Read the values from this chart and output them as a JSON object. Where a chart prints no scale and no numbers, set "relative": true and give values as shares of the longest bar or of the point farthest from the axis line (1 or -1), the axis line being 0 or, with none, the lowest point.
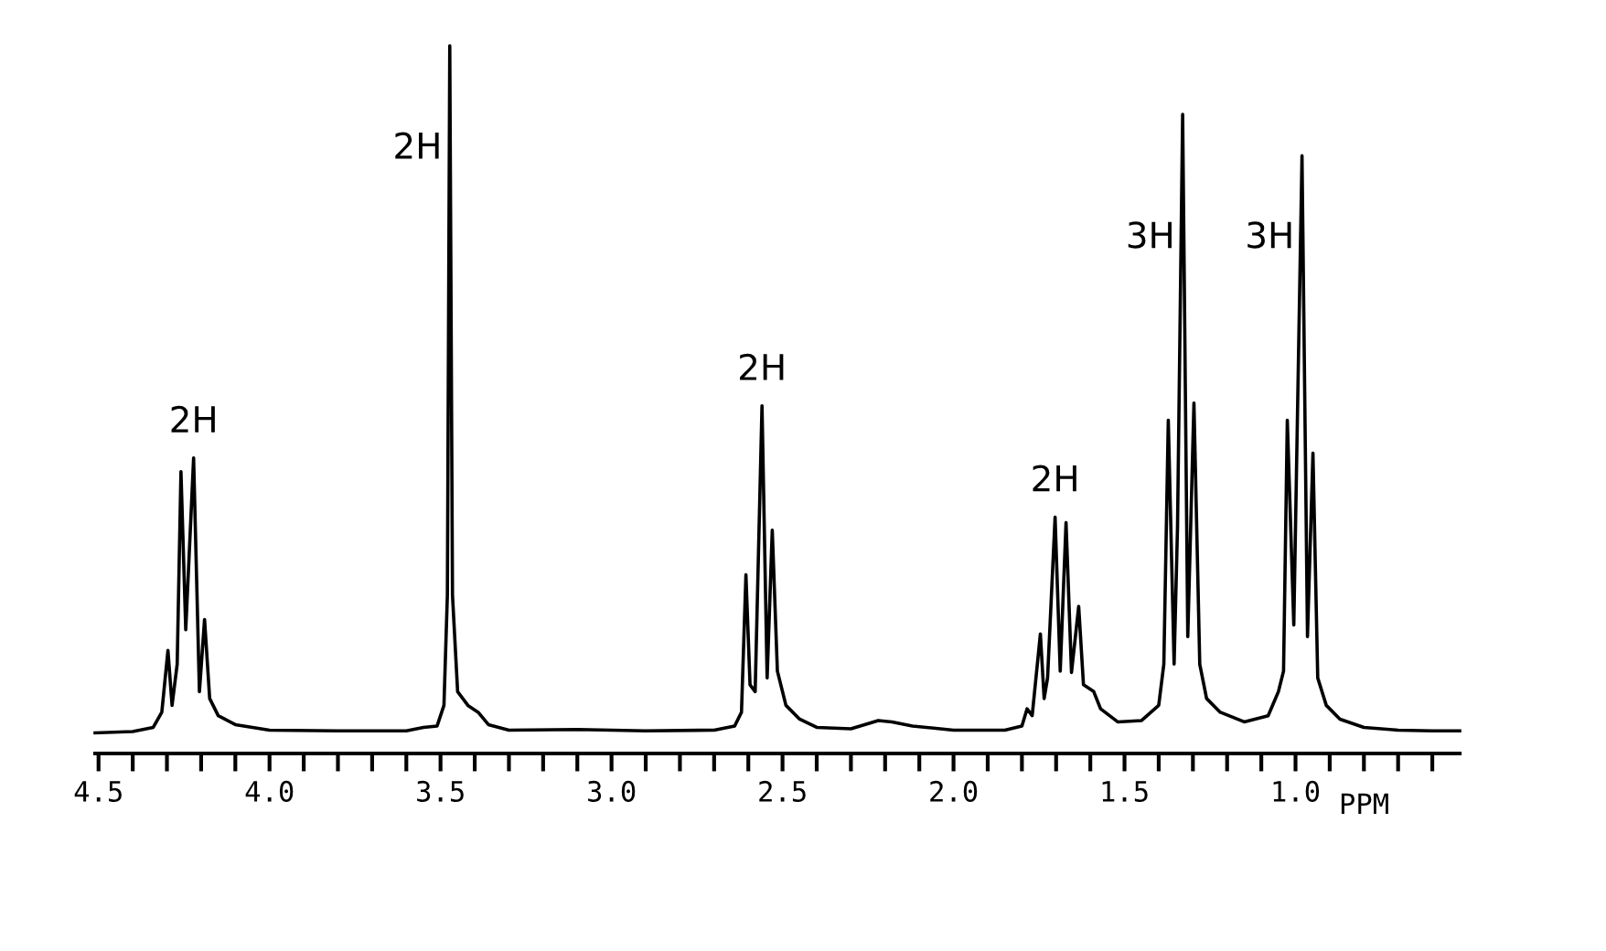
{
  "chart_data": {
    "type": "line",
    "relative": true,
    "xlabel": "PPM",
    "color": "#000000",
    "marker": "none",
    "grid": false,
    "legend": false,
    "xlim": [
      4.51,
      0.52
    ],
    "xticks": [
      4.5,
      {
        "value": 4.4,
        "label": null
      },
      {
        "value": 4.3,
        "label": null
      },
      {
        "value": 4.2,
        "label": null
      },
      {
        "value": 4.1,
        "label": null
      },
      {
        "value": 4.0,
        "label": "4.0"
      },
      {
        "value": 3.9,
        "label": null
      },
      {
        "value": 3.8,
        "label": null
      },
      {
        "value": 3.7,
        "label": null
      },
      {
        "value": 3.6,
        "label": null
      },
      3.5,
      {
        "value": 3.4,
        "label": null
      },
      {
        "value": 3.3,
        "label": null
      },
      {
        "value": 3.2,
        "label": null
      },
      {
        "value": 3.1,
        "label": null
      },
      {
        "value": 3.0,
        "label": "3.0"
      },
      {
        "value": 2.9,
        "label": null
      },
      {
        "value": 2.8,
        "label": null
      },
      {
        "value": 2.7,
        "label": null
      },
      {
        "value": 2.6,
        "label": null
      },
      2.5,
      {
        "value": 2.4,
        "label": null
      },
      {
        "value": 2.3,
        "label": null
      },
      {
        "value": 2.2,
        "label": null
      },
      {
        "value": 2.1,
        "label": null
      },
      {
        "value": 2.0,
        "label": "2.0"
      },
      {
        "value": 1.9,
        "label": null
      },
      {
        "value": 1.8,
        "label": null
      },
      {
        "value": 1.7,
        "label": null
      },
      {
        "value": 1.6,
        "label": null
      },
      1.5,
      {
        "value": 1.4,
        "label": null
      },
      {
        "value": 1.3,
        "label": null
      },
      {
        "value": 1.2,
        "label": null
      },
      {
        "value": 1.1,
        "label": null
      },
      {
        "value": 1.0,
        "label": "1.0"
      },
      {
        "value": 0.9,
        "label": null
      },
      {
        "value": 0.8,
        "label": null
      },
      {
        "value": 0.7,
        "label": null
      },
      {
        "value": 0.6,
        "label": null
      }
    ],
    "x": [
      4.51,
      4.4,
      4.34,
      4.315,
      4.297,
      4.285,
      4.27,
      4.259,
      4.245,
      4.222,
      4.205,
      4.19,
      4.175,
      4.15,
      4.1,
      4.0,
      3.8,
      3.6,
      3.55,
      3.51,
      3.49,
      3.48,
      3.473,
      3.465,
      3.45,
      3.42,
      3.39,
      3.36,
      3.3,
      3.1,
      2.9,
      2.7,
      2.64,
      2.62,
      2.607,
      2.595,
      2.58,
      2.56,
      2.545,
      2.53,
      2.515,
      2.49,
      2.45,
      2.4,
      2.3,
      2.22,
      2.18,
      2.12,
      2.0,
      1.85,
      1.8,
      1.785,
      1.77,
      1.746,
      1.735,
      1.725,
      1.703,
      1.688,
      1.671,
      1.655,
      1.634,
      1.62,
      1.59,
      1.57,
      1.52,
      1.45,
      1.4,
      1.385,
      1.372,
      1.355,
      1.345,
      1.33,
      1.315,
      1.297,
      1.28,
      1.26,
      1.22,
      1.15,
      1.08,
      1.05,
      1.035,
      1.024,
      1.005,
      0.981,
      0.965,
      0.949,
      0.935,
      0.91,
      0.87,
      0.8,
      0.7,
      0.6,
      0.52
    ],
    "values": [
      0,
      0.002,
      0.008,
      0.03,
      0.12,
      0.04,
      0.1,
      0.38,
      0.15,
      0.4,
      0.06,
      0.165,
      0.05,
      0.025,
      0.012,
      0.004,
      0.003,
      0.003,
      0.008,
      0.01,
      0.04,
      0.2,
      1.0,
      0.2,
      0.06,
      0.04,
      0.03,
      0.012,
      0.004,
      0.005,
      0.003,
      0.004,
      0.01,
      0.03,
      0.23,
      0.07,
      0.06,
      0.476,
      0.08,
      0.295,
      0.09,
      0.04,
      0.02,
      0.008,
      0.006,
      0.018,
      0.016,
      0.01,
      0.004,
      0.004,
      0.01,
      0.035,
      0.025,
      0.144,
      0.05,
      0.08,
      0.314,
      0.09,
      0.306,
      0.088,
      0.184,
      0.07,
      0.06,
      0.035,
      0.016,
      0.018,
      0.04,
      0.1,
      0.455,
      0.1,
      0.3,
      0.9,
      0.14,
      0.48,
      0.1,
      0.05,
      0.03,
      0.016,
      0.025,
      0.06,
      0.09,
      0.455,
      0.157,
      0.84,
      0.14,
      0.407,
      0.08,
      0.04,
      0.02,
      0.008,
      0.004,
      0.003,
      0.003
    ],
    "annotations": [
      {
        "text": "2H",
        "x": 4.222,
        "y": 0.4
      },
      {
        "text": "2H",
        "x": 3.473,
        "y": 0.85
      },
      {
        "text": "2H",
        "x": 2.56,
        "y": 0.476
      },
      {
        "text": "2H",
        "x": 1.703,
        "y": 0.314
      },
      {
        "text": "3H",
        "x": 1.33,
        "y": 0.72
      },
      {
        "text": "3H",
        "x": 0.981,
        "y": 0.72
      }
    ]
  }
}
